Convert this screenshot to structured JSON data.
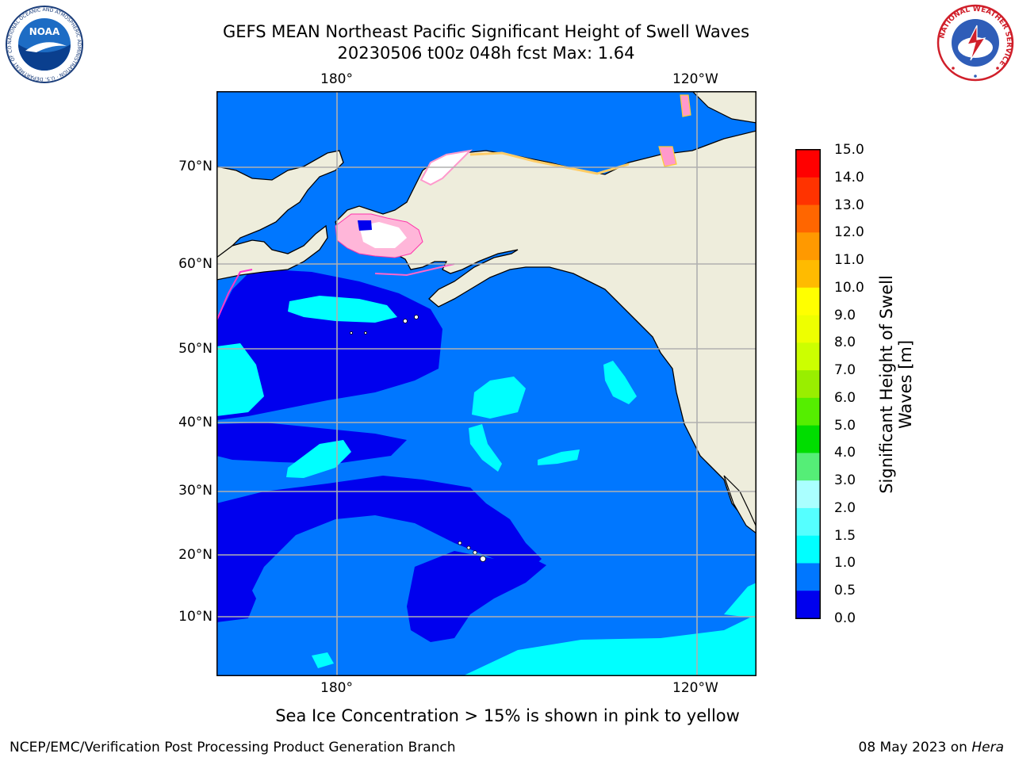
{
  "title": {
    "line1": "GEFS MEAN Northeast Pacific Significant Height of Swell Waves",
    "line2": "20230506 t00z 048h fcst   Max: 1.64"
  },
  "map": {
    "lon_top": [
      "180°",
      "120°W"
    ],
    "lon_bottom": [
      "180°",
      "120°W"
    ],
    "lat_labels": [
      "70°N",
      "60°N",
      "50°N",
      "40°N",
      "30°N",
      "20°N",
      "10°N"
    ],
    "colors": {
      "land": "#eeeddc",
      "ocean_low": "#0000ee",
      "ocean_mid": "#0077ff",
      "ocean_high": "#00ffff",
      "ice": "#ff99cc",
      "grid": "#b0b0b0"
    }
  },
  "colorbar": {
    "label_line1": "Significant Height of Swell",
    "label_line2": "Waves [m]",
    "ticks": [
      "15.0",
      "14.0",
      "13.0",
      "12.0",
      "11.0",
      "10.0",
      "9.0",
      "8.0",
      "7.0",
      "6.0",
      "5.0",
      "4.0",
      "3.0",
      "2.0",
      "1.5",
      "1.0",
      "0.5",
      "0.0"
    ],
    "colors": [
      "#ff0000",
      "#ff3300",
      "#ff6600",
      "#ff9900",
      "#ffbb00",
      "#ffff00",
      "#eeff00",
      "#ccff00",
      "#99ee00",
      "#55ee00",
      "#00dd00",
      "#55ee77",
      "#aaffff",
      "#55ffff",
      "#00ffff",
      "#0077ff",
      "#0000ee"
    ]
  },
  "ice_note": "Sea Ice Concentration > 15% is shown in pink to yellow",
  "footer": {
    "left": "NCEP/EMC/Verification Post Processing Product Generation Branch",
    "right_prefix": "08 May 2023 on ",
    "right_host": "Hera"
  },
  "logos": {
    "noaa_text": "NOAA",
    "noaa_ring": "NATIONAL OCEANIC AND ATMOSPHERIC ADMINISTRATION · U.S. DEPARTMENT OF COMMERCE",
    "nws_ring": "NATIONAL WEATHER SERVICE"
  }
}
